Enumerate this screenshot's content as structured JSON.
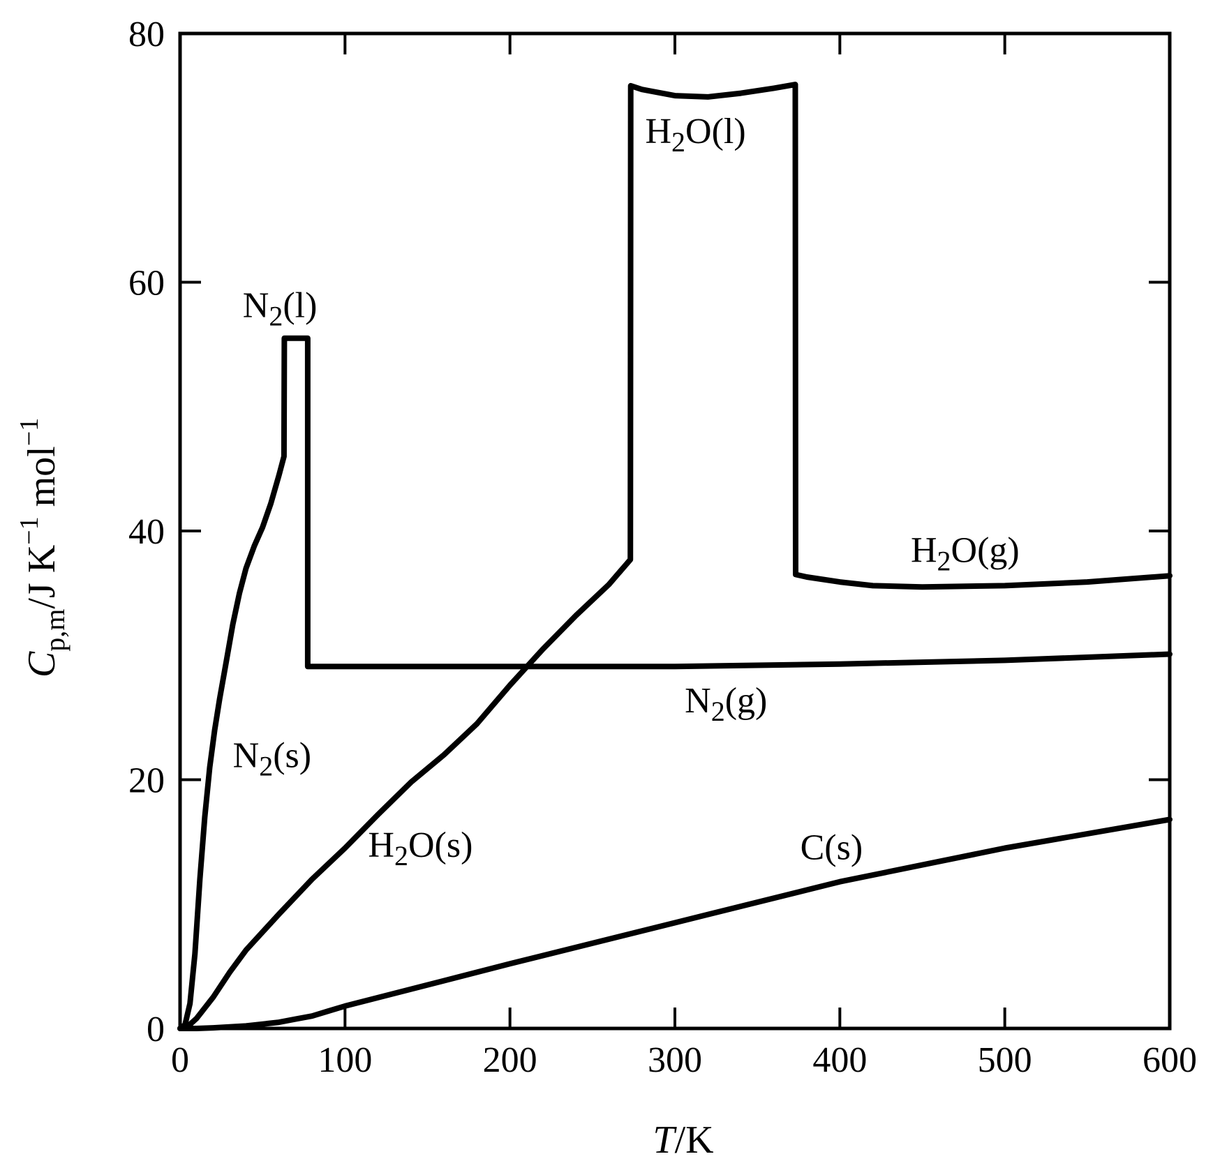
{
  "chart_data": {
    "type": "line",
    "title": "",
    "xlabel": {
      "symbol": "T",
      "unit": "/K"
    },
    "ylabel": {
      "symbol": "C",
      "sub": "p,m",
      "unit_parts": [
        "/J K",
        "−1",
        " mol",
        "−1"
      ]
    },
    "xlim": [
      0,
      600
    ],
    "ylim": [
      0,
      80
    ],
    "xticks": [
      0,
      100,
      200,
      300,
      400,
      500,
      600
    ],
    "yticks": [
      0,
      20,
      40,
      60,
      80
    ],
    "xtick_labels": [
      "0",
      "100",
      "200",
      "300",
      "400",
      "500",
      "600"
    ],
    "ytick_labels": [
      "0",
      "20",
      "40",
      "60",
      "80"
    ],
    "grid": false,
    "series": [
      {
        "key": "nitrogen",
        "label": {
          "base": "N",
          "sub": "2",
          "tail": "(s)"
        },
        "points": [
          [
            0,
            0
          ],
          [
            3,
            0.3
          ],
          [
            6,
            2
          ],
          [
            9,
            6
          ],
          [
            12,
            12
          ],
          [
            15,
            17
          ],
          [
            18,
            21
          ],
          [
            21,
            24
          ],
          [
            24,
            26.5
          ],
          [
            28,
            29.5
          ],
          [
            32,
            32.5
          ],
          [
            36,
            35
          ],
          [
            40,
            37
          ],
          [
            45,
            38.8
          ],
          [
            50,
            40.3
          ],
          [
            55,
            42.2
          ],
          [
            60,
            44.5
          ],
          [
            63,
            46
          ],
          [
            63.2,
            55.5
          ],
          [
            77.4,
            55.5
          ],
          [
            77.4,
            29.1
          ],
          [
            120,
            29.1
          ],
          [
            200,
            29.1
          ],
          [
            300,
            29.1
          ],
          [
            400,
            29.3
          ],
          [
            500,
            29.6
          ],
          [
            600,
            30.1
          ]
        ]
      },
      {
        "key": "water",
        "label": {
          "base": "H",
          "sub": "2",
          "tail": "O(s)"
        },
        "points": [
          [
            0,
            0
          ],
          [
            5,
            0.2
          ],
          [
            10,
            0.8
          ],
          [
            20,
            2.5
          ],
          [
            30,
            4.5
          ],
          [
            40,
            6.3
          ],
          [
            60,
            9.2
          ],
          [
            80,
            12
          ],
          [
            100,
            14.5
          ],
          [
            120,
            17.2
          ],
          [
            140,
            19.8
          ],
          [
            160,
            22
          ],
          [
            180,
            24.5
          ],
          [
            200,
            27.6
          ],
          [
            220,
            30.5
          ],
          [
            240,
            33.2
          ],
          [
            260,
            35.7
          ],
          [
            273,
            37.7
          ],
          [
            273.2,
            75.8
          ],
          [
            280,
            75.5
          ],
          [
            300,
            75
          ],
          [
            320,
            74.9
          ],
          [
            340,
            75.2
          ],
          [
            360,
            75.6
          ],
          [
            373,
            75.9
          ],
          [
            373.2,
            36.5
          ],
          [
            380,
            36.3
          ],
          [
            400,
            35.9
          ],
          [
            420,
            35.6
          ],
          [
            450,
            35.5
          ],
          [
            500,
            35.6
          ],
          [
            550,
            35.9
          ],
          [
            600,
            36.4
          ]
        ]
      },
      {
        "key": "carbon",
        "label": {
          "base": "C",
          "sub": "",
          "tail": "(s)"
        },
        "points": [
          [
            0,
            0
          ],
          [
            10,
            0
          ],
          [
            20,
            0.05
          ],
          [
            40,
            0.2
          ],
          [
            60,
            0.5
          ],
          [
            70,
            0.75
          ],
          [
            80,
            1.0
          ],
          [
            90,
            1.4
          ],
          [
            100,
            1.8
          ],
          [
            150,
            3.5
          ],
          [
            200,
            5.2
          ],
          [
            300,
            8.5
          ],
          [
            400,
            11.8
          ],
          [
            500,
            14.5
          ],
          [
            600,
            16.8
          ]
        ]
      }
    ],
    "labels": [
      {
        "key": "N2s",
        "base": "N",
        "sub": "2",
        "tail": "(s)",
        "at": [
          32,
          21
        ]
      },
      {
        "key": "N2l",
        "base": "N",
        "sub": "2",
        "tail": "(l)",
        "at": [
          38,
          57.2
        ]
      },
      {
        "key": "N2g",
        "base": "N",
        "sub": "2",
        "tail": "(g)",
        "at": [
          306,
          25.4
        ]
      },
      {
        "key": "H2Os",
        "base": "H",
        "sub": "2",
        "tail": "O(s)",
        "at": [
          114,
          13.8
        ]
      },
      {
        "key": "H2Ol",
        "base": "H",
        "sub": "2",
        "tail": "O(l)",
        "at": [
          282,
          71.2
        ]
      },
      {
        "key": "H2Og",
        "base": "H",
        "sub": "2",
        "tail": "O(g)",
        "at": [
          443,
          37.5
        ]
      },
      {
        "key": "Cs",
        "base": "C",
        "sub": "",
        "tail": "(s)",
        "at": [
          376,
          13.6
        ]
      }
    ]
  }
}
